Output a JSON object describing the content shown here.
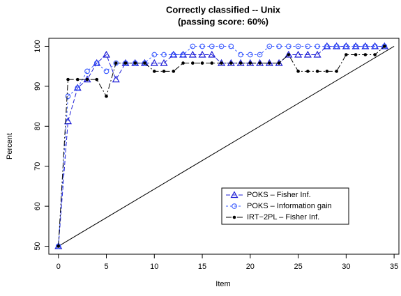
{
  "chart_data": {
    "type": "line",
    "title": "Correctly classified -- Unix",
    "subtitle": "(passing score: 60%)",
    "x_label": "Item",
    "y_label": "Percent",
    "x": [
      0,
      1,
      2,
      3,
      4,
      5,
      6,
      7,
      8,
      9,
      10,
      11,
      12,
      13,
      14,
      15,
      16,
      17,
      18,
      19,
      20,
      21,
      22,
      23,
      24,
      25,
      26,
      27,
      28,
      29,
      30,
      31,
      32,
      33,
      34
    ],
    "series": [
      {
        "name": "POKS – Fisher Inf.",
        "color": "#1f1fd6",
        "marker": "triangle",
        "dash": "6,3",
        "values": [
          50,
          81.25,
          89.6,
          91.7,
          95.8,
          97.9,
          91.7,
          95.8,
          95.8,
          95.8,
          95.8,
          95.8,
          97.9,
          97.9,
          97.9,
          97.9,
          97.9,
          95.8,
          95.8,
          95.8,
          95.8,
          95.8,
          95.8,
          95.8,
          97.9,
          97.9,
          97.9,
          97.9,
          100,
          100,
          100,
          100,
          100,
          100,
          100
        ]
      },
      {
        "name": "POKS – Information gain",
        "color": "#3b5bff",
        "marker": "circle",
        "dash": "3,3",
        "values": [
          50,
          87.5,
          89.6,
          93.75,
          95.8,
          93.75,
          95.8,
          95.8,
          95.8,
          95.8,
          97.9,
          97.9,
          97.9,
          97.9,
          100,
          100,
          100,
          100,
          100,
          97.9,
          97.9,
          97.9,
          100,
          100,
          100,
          100,
          100,
          100,
          100,
          100,
          100,
          100,
          100,
          100,
          100
        ]
      },
      {
        "name": "IRT−2PL – Fisher Inf.",
        "color": "#000000",
        "marker": "dot",
        "dash": "8,3,2,3",
        "values": [
          50,
          91.7,
          91.7,
          91.7,
          91.7,
          87.5,
          95.8,
          95.8,
          95.8,
          95.8,
          93.75,
          93.75,
          93.75,
          95.8,
          95.8,
          95.8,
          95.8,
          95.8,
          95.8,
          95.8,
          95.8,
          95.8,
          95.8,
          95.8,
          97.9,
          93.75,
          93.75,
          93.75,
          93.75,
          93.75,
          97.9,
          97.9,
          97.9,
          97.9,
          100
        ]
      }
    ],
    "reference_line": {
      "x": [
        0,
        35
      ],
      "values": [
        50,
        100
      ],
      "color": "#000000"
    },
    "xlim": [
      -1,
      35.5
    ],
    "ylim": [
      48,
      102
    ],
    "xticks": [
      0,
      5,
      10,
      15,
      20,
      25,
      30,
      35
    ],
    "yticks": [
      50,
      60,
      70,
      80,
      90,
      100
    ],
    "legend": "bottom-right"
  }
}
